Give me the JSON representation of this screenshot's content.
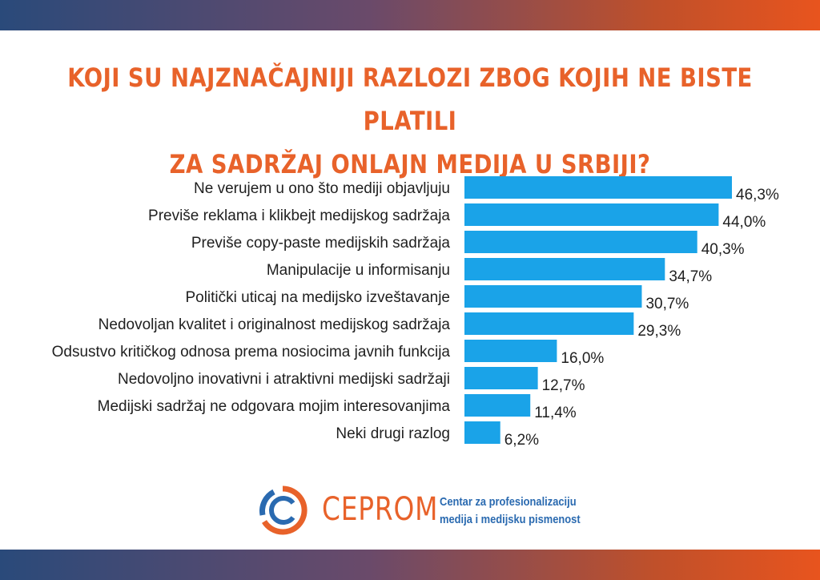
{
  "header": {
    "title_line1": "KOJI SU NAJZNAČAJNIJI RAZLOZI ZBOG KOJIH NE BISTE PLATILI",
    "title_line2": "ZA SADRŽAJ ONLAJN MEDIJA U SRBIJI?"
  },
  "colors": {
    "bar": "#1aa3e8",
    "accent": "#e8622a",
    "tagline": "#2a6ab0"
  },
  "chart_data": {
    "type": "bar",
    "orientation": "horizontal",
    "categories": [
      "Ne verujem u ono što mediji objavljuju",
      "Previše reklama i klikbejt medijskog sadržaja",
      "Previše copy-paste medijskih sadržaja",
      "Manipulacije u informisanju",
      "Politički uticaj na medijsko izveštavanje",
      "Nedovoljan kvalitet i originalnost medijskog sadržaja",
      "Odsustvo kritičkog odnosa prema nosiocima javnih funkcija",
      "Nedovoljno inovativni i atraktivni medijski sadržaji",
      "Medijski sadržaj ne odgovara mojim interesovanjima",
      "Neki drugi razlog"
    ],
    "values": [
      46.3,
      44.0,
      40.3,
      34.7,
      30.7,
      29.3,
      16.0,
      12.7,
      11.4,
      6.2
    ],
    "value_labels": [
      "46,3%",
      "44,0%",
      "40,3%",
      "34,7%",
      "30,7%",
      "29,3%",
      "16,0%",
      "12,7%",
      "11,4%",
      "6,2%"
    ],
    "title": "KOJI SU NAJZNAČAJNIJI RAZLOZI ZBOG KOJIH NE BISTE PLATILI ZA SADRŽAJ ONLAJN MEDIJA U SRBIJI?",
    "xlabel": "",
    "ylabel": "",
    "xlim": [
      0,
      46.3
    ],
    "grid": false,
    "legend": "none"
  },
  "footer": {
    "logo_name": "CEPROM",
    "tagline_line1": "Centar za profesionalizaciju",
    "tagline_line2": "medija i medijsku pismenost"
  }
}
